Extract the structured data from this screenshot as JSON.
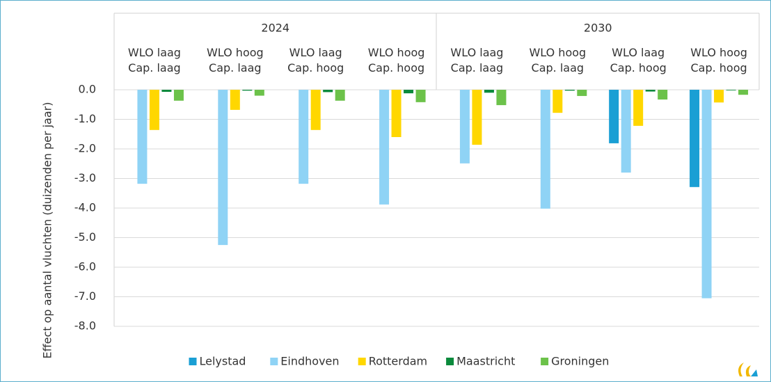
{
  "chart_data": {
    "type": "bar",
    "y_label": "Effect op aantal vluchten (duizenden per jaar)",
    "groups": [
      "2024",
      "2030"
    ],
    "categories": [
      "WLO laag\nCap. laag",
      "WLO hoog\nCap. laag",
      "WLO laag\nCap. hoog",
      "WLO hoog\nCap. hoog",
      "WLO laag\nCap. laag",
      "WLO hoog\nCap. laag",
      "WLO laag\nCap. hoog",
      "WLO hoog\nCap. hoog"
    ],
    "series": [
      {
        "name": "Lelystad",
        "color": "#1a9fd4",
        "values": [
          0,
          0,
          0,
          0,
          0,
          0,
          -1.81,
          -3.29
        ]
      },
      {
        "name": "Eindhoven",
        "color": "#8fd3f5",
        "values": [
          -3.18,
          -5.25,
          -3.18,
          -3.88,
          -2.49,
          -4.02,
          -2.8,
          -7.05
        ]
      },
      {
        "name": "Rotterdam",
        "color": "#ffd700",
        "values": [
          -1.36,
          -0.68,
          -1.36,
          -1.6,
          -1.86,
          -0.78,
          -1.22,
          -0.43
        ]
      },
      {
        "name": "Maastricht",
        "color": "#0b8a3c",
        "values": [
          -0.07,
          -0.03,
          -0.08,
          -0.12,
          -0.1,
          -0.03,
          -0.06,
          -0.02
        ]
      },
      {
        "name": "Groningen",
        "color": "#6cc24a",
        "values": [
          -0.37,
          -0.2,
          -0.37,
          -0.42,
          -0.52,
          -0.21,
          -0.33,
          -0.17
        ]
      }
    ],
    "ylim": [
      -8,
      0
    ],
    "yticks": [
      {
        "value": 0,
        "label": "0.0"
      },
      {
        "value": -1,
        "label": "-1.0"
      },
      {
        "value": -2,
        "label": "-2.0"
      },
      {
        "value": -3,
        "label": "-3.0"
      },
      {
        "value": -4,
        "label": "-4.0"
      },
      {
        "value": -5,
        "label": "-5.0"
      },
      {
        "value": -6,
        "label": "-6.0"
      },
      {
        "value": -7,
        "label": "-7.0"
      },
      {
        "value": -8,
        "label": "-8.0"
      }
    ],
    "grid": true
  }
}
